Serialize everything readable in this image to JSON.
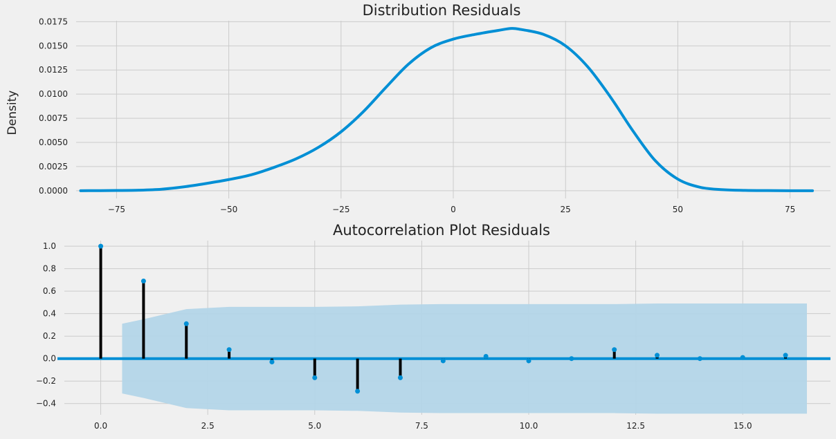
{
  "colors": {
    "background": "#f0f0f0",
    "line": "#008fd5",
    "stem": "#000000",
    "confidence_band": "#b3d5e8",
    "grid": "#cbcbcb"
  },
  "chart_data": [
    {
      "type": "line",
      "title": "Distribution Residuals",
      "xlabel": "",
      "ylabel": "Density",
      "xlim": [
        -84,
        84
      ],
      "ylim": [
        -0.0008,
        0.0176
      ],
      "xticks": [
        -75,
        -50,
        -25,
        0,
        25,
        50,
        75
      ],
      "xtick_labels": [
        "−75",
        "−50",
        "−25",
        "0",
        "25",
        "50",
        "75"
      ],
      "yticks": [
        0,
        0.0025,
        0.005,
        0.0075,
        0.01,
        0.0125,
        0.015,
        0.0175
      ],
      "ytick_labels": [
        "0.0000",
        "0.0025",
        "0.0050",
        "0.0075",
        "0.0100",
        "0.0125",
        "0.0150",
        "0.0175"
      ],
      "grid": true,
      "series": [
        {
          "x": [
            -83,
            -75,
            -70,
            -65,
            -60,
            -55,
            -50,
            -45,
            -40,
            -35,
            -30,
            -25,
            -20,
            -15,
            -10,
            -5,
            0,
            5,
            10,
            13,
            15,
            20,
            25,
            30,
            35,
            40,
            45,
            50,
            55,
            60,
            65,
            70,
            75,
            80
          ],
          "y": [
            0,
            2e-05,
            5e-05,
            0.00015,
            0.0004,
            0.00075,
            0.00115,
            0.00165,
            0.0024,
            0.0033,
            0.0045,
            0.0061,
            0.0082,
            0.0107,
            0.0131,
            0.0148,
            0.0157,
            0.0162,
            0.0166,
            0.0168,
            0.0167,
            0.0162,
            0.015,
            0.0128,
            0.0097,
            0.0062,
            0.0031,
            0.0012,
            0.00035,
            0.0001,
            3e-05,
            1e-05,
            0,
            0
          ]
        }
      ]
    },
    {
      "type": "stem",
      "title": "Autocorrelation Plot Residuals",
      "xlabel": "",
      "ylabel": "",
      "xlim": [
        -0.85,
        17.05
      ],
      "ylim": [
        -0.5,
        1.05
      ],
      "xticks": [
        0,
        2.5,
        5,
        7.5,
        10,
        12.5,
        15
      ],
      "xtick_labels": [
        "0.0",
        "2.5",
        "5.0",
        "7.5",
        "10.0",
        "12.5",
        "15.0"
      ],
      "yticks": [
        -0.4,
        -0.2,
        0,
        0.2,
        0.4,
        0.6,
        0.8,
        1.0
      ],
      "ytick_labels": [
        "−0.4",
        "−0.2",
        "0.0",
        "0.2",
        "0.4",
        "0.6",
        "0.8",
        "1.0"
      ],
      "grid": true,
      "lags": [
        0,
        1,
        2,
        3,
        4,
        5,
        6,
        7,
        8,
        9,
        10,
        11,
        12,
        13,
        14,
        15,
        16
      ],
      "values": [
        1.0,
        0.69,
        0.31,
        0.08,
        -0.03,
        -0.17,
        -0.29,
        -0.17,
        -0.02,
        0.02,
        -0.02,
        0.0,
        0.08,
        0.03,
        0.0,
        0.01,
        0.03
      ],
      "confidence_band": {
        "x": [
          0.5,
          1,
          2,
          3,
          4,
          5,
          6,
          7,
          8,
          9,
          10,
          11,
          12,
          13,
          14,
          15,
          16,
          16.5
        ],
        "upper": [
          0.31,
          0.35,
          0.44,
          0.46,
          0.46,
          0.46,
          0.465,
          0.48,
          0.485,
          0.485,
          0.485,
          0.485,
          0.485,
          0.49,
          0.49,
          0.49,
          0.49,
          0.49
        ],
        "lower": [
          -0.31,
          -0.35,
          -0.44,
          -0.46,
          -0.46,
          -0.46,
          -0.465,
          -0.48,
          -0.485,
          -0.485,
          -0.485,
          -0.485,
          -0.485,
          -0.49,
          -0.49,
          -0.49,
          -0.49,
          -0.49
        ]
      }
    }
  ]
}
